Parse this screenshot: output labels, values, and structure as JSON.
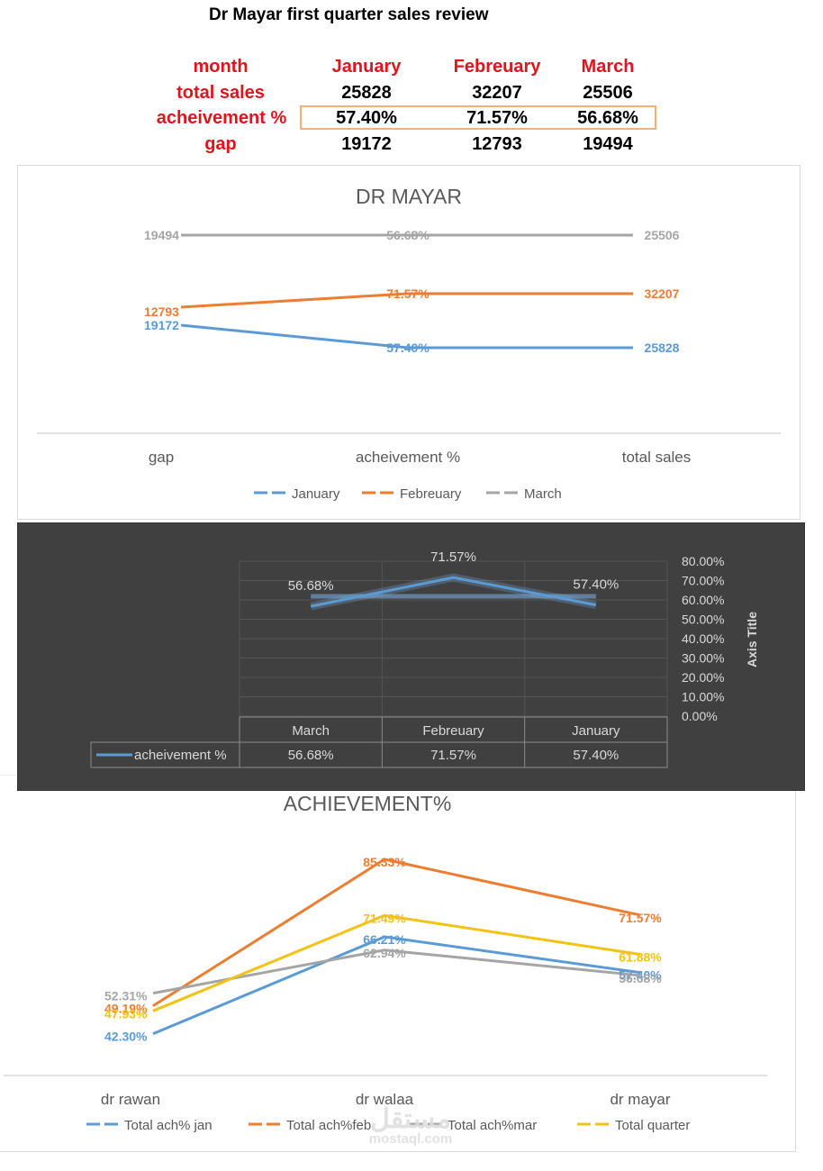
{
  "page_title": "Dr Mayar first quarter sales review",
  "summary_table": {
    "row_labels": [
      "month",
      "total sales",
      "acheivement %",
      "gap"
    ],
    "months": [
      "January",
      "Febreuary",
      "March"
    ],
    "total_sales": [
      "25828",
      "32207",
      "25506"
    ],
    "achievement": [
      "57.40%",
      "71.57%",
      "56.68%"
    ],
    "gap": [
      "19172",
      "12793",
      "19494"
    ]
  },
  "colors": {
    "red": "#e0141c",
    "blue": "#5b9bd5",
    "orange": "#ed7d31",
    "gray": "#a5a5a5",
    "yellow": "#f2c314",
    "dark_bg": "#404040"
  },
  "chart_data": [
    {
      "type": "line",
      "title": "DR MAYAR",
      "categories": [
        "gap",
        "acheivement %",
        "total sales"
      ],
      "series": [
        {
          "name": "January",
          "color": "#5b9bd5",
          "level": 19,
          "labels": [
            "19172",
            "57.40%",
            "25828"
          ],
          "levels": [
            24,
            19,
            19
          ]
        },
        {
          "name": "Febreuary",
          "color": "#ed7d31",
          "level": 31,
          "labels": [
            "12793",
            "71.57%",
            "32207"
          ],
          "levels": [
            28,
            31,
            31
          ]
        },
        {
          "name": "March",
          "color": "#a5a5a5",
          "level": 44,
          "labels": [
            "19494",
            "56.68%",
            "25506"
          ],
          "levels": [
            44,
            44,
            44
          ]
        }
      ],
      "legend": [
        "January",
        "Febreuary",
        "March"
      ],
      "ylim": [
        0,
        50
      ],
      "legend_position": "bottom"
    },
    {
      "type": "line",
      "title": "",
      "categories": [
        "March",
        "Febreuary",
        "January"
      ],
      "series": [
        {
          "name": "acheivement %",
          "values": [
            56.68,
            71.57,
            57.4
          ],
          "labels": [
            "56.68%",
            "71.57%",
            "57.40%"
          ],
          "color": "#5b9bd5"
        }
      ],
      "trend_value": 61.88,
      "y_ticks": [
        "80.00%",
        "70.00%",
        "60.00%",
        "50.00%",
        "40.00%",
        "30.00%",
        "20.00%",
        "10.00%",
        "0.00%"
      ],
      "ylim": [
        0,
        80
      ],
      "ylabel": "Axis Title",
      "data_table": true
    },
    {
      "type": "line",
      "title": "ACHIEVEMENT%",
      "categories": [
        "dr rawan",
        "dr walaa",
        "dr mayar"
      ],
      "series": [
        {
          "name": "Total ach% jan",
          "values": [
            42.3,
            66.21,
            57.4
          ],
          "labels": [
            "42.30%",
            "66.21%",
            "57.40%"
          ],
          "color": "#5b9bd5"
        },
        {
          "name": "Total ach%feb",
          "values": [
            49.19,
            85.33,
            71.57
          ],
          "labels": [
            "49.19%",
            "85.33%",
            "71.57%"
          ],
          "color": "#ed7d31"
        },
        {
          "name": "Total ach%mar",
          "values": [
            52.31,
            62.94,
            56.68
          ],
          "labels": [
            "52.31%",
            "62.94%",
            "56.68%"
          ],
          "color": "#a5a5a5"
        },
        {
          "name": "Total quarter",
          "values": [
            47.93,
            71.49,
            61.88
          ],
          "labels": [
            "47.93%",
            "71.49%",
            "61.88%"
          ],
          "color": "#f2c314"
        }
      ],
      "legend_position": "bottom"
    }
  ],
  "watermark": {
    "arabic": "مستقل",
    "latin": "mostaql.com"
  }
}
